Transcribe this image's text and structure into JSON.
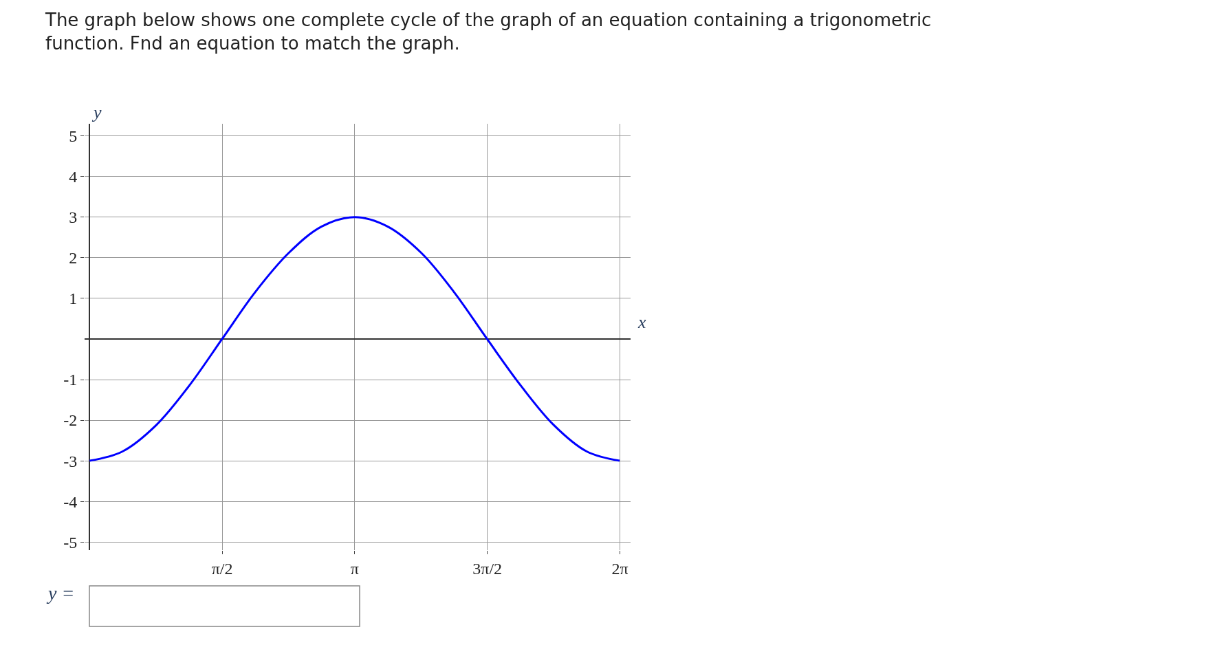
{
  "chart_data": {
    "type": "line",
    "title": "The graph below shows one complete cycle of the graph of an equation containing a trigonometric\nfunction. Fnd an equation to match the graph.",
    "xlabel": "x",
    "ylabel": "y",
    "x": [
      0,
      0.39,
      0.79,
      1.18,
      1.57,
      1.96,
      2.36,
      2.75,
      3.14,
      3.53,
      3.93,
      4.32,
      4.71,
      5.11,
      5.5,
      5.89,
      6.28
    ],
    "series": [
      {
        "color": "#0000ff",
        "values": [
          -3,
          -2.77,
          -2.12,
          -1.15,
          0,
          1.15,
          2.12,
          2.77,
          3,
          2.77,
          2.12,
          1.15,
          0,
          -1.15,
          -2.12,
          -2.77,
          -3
        ]
      }
    ],
    "xlim": [
      -0.06,
      6.41
    ],
    "ylim": [
      -5.2,
      5.3
    ],
    "xticks": [
      {
        "value": 1.5708,
        "label": "π/2"
      },
      {
        "value": 3.1416,
        "label": "π"
      },
      {
        "value": 4.7124,
        "label": "3π/2"
      },
      {
        "value": 6.2832,
        "label": "2π"
      }
    ],
    "yticks": [
      -5,
      -4,
      -3,
      -2,
      -1,
      1,
      2,
      3,
      4,
      5
    ],
    "grid": true,
    "marker": "none",
    "line_style": "solid",
    "annotations": [
      "y ="
    ]
  }
}
